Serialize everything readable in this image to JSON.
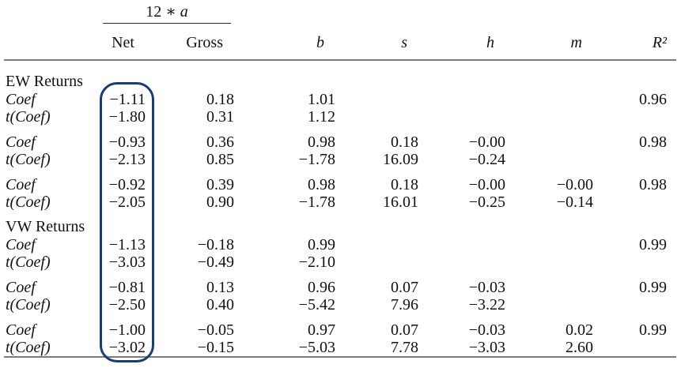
{
  "highlight": {
    "color": "#1b3c70",
    "annotated_column": "Net"
  },
  "table": {
    "spanner": {
      "prefix": "12 ∗ ",
      "variable": "a"
    },
    "column_headers": [
      "Net",
      "Gross",
      "b",
      "s",
      "h",
      "m",
      "R²"
    ],
    "rows": [
      {
        "type": "section",
        "label": "EW Returns"
      },
      {
        "type": "data",
        "label": "Coef",
        "values": [
          "−1.11",
          "0.18",
          "1.01",
          "",
          "",
          "",
          "0.96"
        ]
      },
      {
        "type": "data",
        "label": "t(Coef)",
        "values": [
          "−1.80",
          "0.31",
          "1.12",
          "",
          "",
          "",
          ""
        ]
      },
      {
        "type": "gap"
      },
      {
        "type": "data",
        "label": "Coef",
        "values": [
          "−0.93",
          "0.36",
          "0.98",
          "0.18",
          "−0.00",
          "",
          "0.98"
        ]
      },
      {
        "type": "data",
        "label": "t(Coef)",
        "values": [
          "−2.13",
          "0.85",
          "−1.78",
          "16.09",
          "−0.24",
          "",
          ""
        ]
      },
      {
        "type": "gap"
      },
      {
        "type": "data",
        "label": "Coef",
        "values": [
          "−0.92",
          "0.39",
          "0.98",
          "0.18",
          "−0.00",
          "−0.00",
          "0.98"
        ]
      },
      {
        "type": "data",
        "label": "t(Coef)",
        "values": [
          "−2.05",
          "0.90",
          "−1.78",
          "16.01",
          "−0.25",
          "−0.14",
          ""
        ]
      },
      {
        "type": "section",
        "label": "VW Returns"
      },
      {
        "type": "data",
        "label": "Coef",
        "values": [
          "−1.13",
          "−0.18",
          "0.99",
          "",
          "",
          "",
          "0.99"
        ]
      },
      {
        "type": "data",
        "label": "t(Coef)",
        "values": [
          "−3.03",
          "−0.49",
          "−2.10",
          "",
          "",
          "",
          ""
        ]
      },
      {
        "type": "gap"
      },
      {
        "type": "data",
        "label": "Coef",
        "values": [
          "−0.81",
          "0.13",
          "0.96",
          "0.07",
          "−0.03",
          "",
          "0.99"
        ]
      },
      {
        "type": "data",
        "label": "t(Coef)",
        "values": [
          "−2.50",
          "0.40",
          "−5.42",
          "7.96",
          "−3.22",
          "",
          ""
        ]
      },
      {
        "type": "gap"
      },
      {
        "type": "data",
        "label": "Coef",
        "values": [
          "−1.00",
          "−0.05",
          "0.97",
          "0.07",
          "−0.03",
          "0.02",
          "0.99"
        ]
      },
      {
        "type": "data",
        "label": "t(Coef)",
        "values": [
          "−3.02",
          "−0.15",
          "−5.03",
          "7.78",
          "−3.03",
          "2.60",
          ""
        ]
      }
    ]
  }
}
